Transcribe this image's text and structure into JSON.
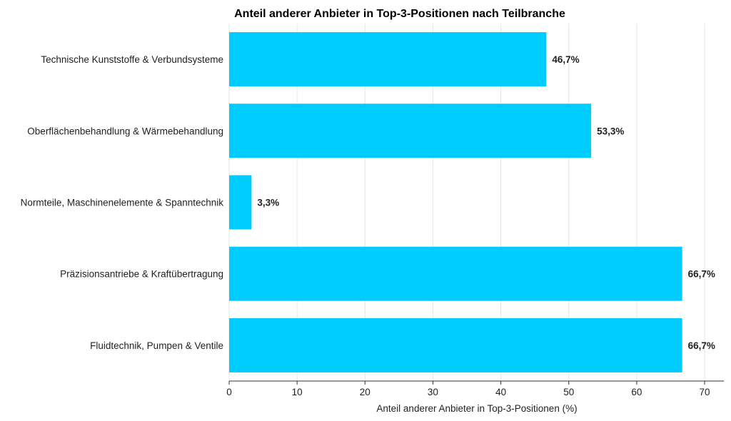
{
  "chart_data": {
    "type": "bar",
    "orientation": "horizontal",
    "title": "Anteil anderer Anbieter in Top-3-Positionen nach Teilbranche",
    "xlabel": "Anteil anderer Anbieter in Top-3-Positionen (%)",
    "ylabel": "",
    "xlim": [
      0,
      72
    ],
    "xticks": [
      0,
      10,
      20,
      30,
      40,
      50,
      60,
      70
    ],
    "grid": true,
    "legend": "none",
    "bar_color": "#00CCFF",
    "categories": [
      "Technische Kunststoffe & Verbundsysteme",
      "Oberflächenbehandlung & Wärmebehandlung",
      "Normteile, Maschinenelemente & Spanntechnik",
      "Präzisionsantriebe & Kraftübertragung",
      "Fluidtechnik, Pumpen & Ventile"
    ],
    "values": [
      46.7,
      53.3,
      3.3,
      66.7,
      66.7
    ],
    "value_labels": [
      "46,7%",
      "53,3%",
      "3,3%",
      "66,7%",
      "66,7%"
    ]
  }
}
